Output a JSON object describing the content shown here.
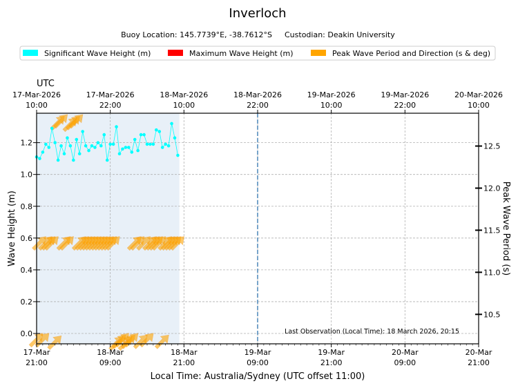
{
  "chart_data": {
    "type": "line",
    "title": "Inverloch",
    "subtitle": {
      "location_label": "Buoy Location: 145.7739°E, -38.7612°S",
      "custodian_label": "Custodian: Deakin University"
    },
    "legend": {
      "placement": "top",
      "entries": [
        {
          "label": "Significant Wave Height (m)",
          "color": "#00ffff"
        },
        {
          "label": "Maximum Wave Height (m)",
          "color": "#ff0000"
        },
        {
          "label": "Peak Wave Period and Direction (s & deg)",
          "color": "#ffa500"
        }
      ]
    },
    "top_axis": {
      "label": "UTC",
      "ticks": [
        {
          "date": "17-Mar-2026",
          "time": "10:00"
        },
        {
          "date": "17-Mar-2026",
          "time": "22:00"
        },
        {
          "date": "18-Mar-2026",
          "time": "10:00"
        },
        {
          "date": "18-Mar-2026",
          "time": "22:00"
        },
        {
          "date": "19-Mar-2026",
          "time": "10:00"
        },
        {
          "date": "19-Mar-2026",
          "time": "22:00"
        },
        {
          "date": "20-Mar-2026",
          "time": "10:00"
        }
      ]
    },
    "bottom_axis": {
      "label": "Local Time: Australia/Sydney (UTC offset 11:00)",
      "ticks": [
        {
          "date": "17-Mar",
          "time": "21:00"
        },
        {
          "date": "18-Mar",
          "time": "09:00"
        },
        {
          "date": "18-Mar",
          "time": "21:00"
        },
        {
          "date": "19-Mar",
          "time": "09:00"
        },
        {
          "date": "19-Mar",
          "time": "21:00"
        },
        {
          "date": "20-Mar",
          "time": "09:00"
        },
        {
          "date": "20-Mar",
          "time": "21:00"
        }
      ],
      "range_hours": [
        0,
        72
      ]
    },
    "left_axis": {
      "label": "Wave Height (m)",
      "ylim": [
        -0.065,
        1.385
      ],
      "ticks": [
        "0.0",
        "0.2",
        "0.4",
        "0.6",
        "0.8",
        "1.0",
        "1.2"
      ]
    },
    "right_axis": {
      "label": "Peak Wave Period (s)",
      "ylim": [
        10.15,
        12.89
      ],
      "ticks": [
        "10.5",
        "11.0",
        "11.5",
        "12.0",
        "12.5"
      ]
    },
    "grid": true,
    "observation_span_hours": [
      0,
      23.25
    ],
    "now_marker_hours": 36,
    "last_observation_label": "Last Observation (Local Time): 18 March 2026, 20:15",
    "series": [
      {
        "name": "Significant Wave Height (m)",
        "color": "#00ffff",
        "x_hours": [
          0,
          0.5,
          1,
          1.5,
          2,
          2.5,
          3,
          3.5,
          4,
          4.5,
          5,
          5.5,
          6,
          6.5,
          7,
          7.5,
          8,
          8.5,
          9,
          9.5,
          10,
          10.5,
          11,
          11.5,
          12,
          12.5,
          13,
          13.5,
          14,
          14.5,
          15,
          15.5,
          16,
          16.5,
          17,
          17.5,
          18,
          18.5,
          19,
          19.5,
          20,
          20.5,
          21,
          21.5,
          22,
          22.5,
          23
        ],
        "values": [
          1.11,
          1.1,
          1.14,
          1.19,
          1.17,
          1.29,
          1.2,
          1.09,
          1.18,
          1.13,
          1.23,
          1.18,
          1.09,
          1.22,
          1.13,
          1.27,
          1.18,
          1.15,
          1.18,
          1.17,
          1.2,
          1.18,
          1.25,
          1.09,
          1.19,
          1.19,
          1.3,
          1.13,
          1.16,
          1.17,
          1.17,
          1.14,
          1.22,
          1.15,
          1.25,
          1.25,
          1.19,
          1.19,
          1.19,
          1.28,
          1.27,
          1.17,
          1.19,
          1.18,
          1.32,
          1.23,
          1.12
        ]
      },
      {
        "name": "Peak Wave Period and Direction (s & deg)",
        "color": "#ffa500",
        "x_hours": [
          0,
          0.5,
          1,
          1.5,
          2,
          2.5,
          3,
          3.5,
          4,
          4.5,
          5,
          5.5,
          6,
          6.5,
          7,
          7.5,
          8,
          8.5,
          9,
          9.5,
          10,
          10.5,
          11,
          11.5,
          12,
          12.5,
          13,
          13.5,
          14,
          14.5,
          15,
          15.5,
          16,
          16.5,
          17,
          17.5,
          18,
          18.5,
          19,
          19.5,
          20,
          20.5,
          21,
          21.5,
          22,
          22.5,
          23
        ],
        "period_s": [
          10.2,
          11.35,
          10.2,
          11.35,
          11.35,
          11.35,
          10.17,
          12.78,
          12.8,
          11.35,
          11.35,
          12.76,
          12.78,
          12.8,
          11.35,
          11.35,
          11.35,
          11.35,
          11.35,
          11.35,
          11.35,
          11.35,
          11.35,
          11.35,
          11.35,
          11.35,
          10.16,
          10.18,
          10.2,
          10.16,
          10.18,
          10.2,
          11.35,
          11.35,
          10.18,
          11.35,
          10.2,
          11.35,
          11.35,
          11.35,
          11.35,
          10.18,
          11.35,
          11.35,
          11.35,
          11.35,
          11.35
        ],
        "direction_deg": [
          225,
          225,
          225,
          225,
          225,
          225,
          225,
          225,
          225,
          225,
          225,
          225,
          225,
          225,
          225,
          225,
          225,
          225,
          225,
          225,
          225,
          225,
          225,
          225,
          225,
          225,
          225,
          225,
          225,
          225,
          225,
          225,
          225,
          225,
          225,
          225,
          225,
          225,
          225,
          225,
          225,
          225,
          225,
          225,
          225,
          225,
          225
        ]
      }
    ]
  }
}
